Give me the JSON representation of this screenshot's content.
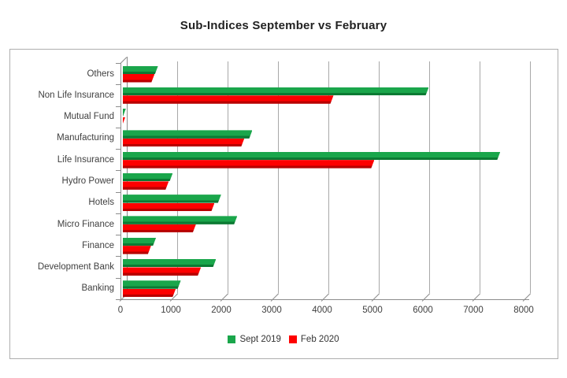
{
  "title": "Sub-Indices September vs February",
  "chart_data": {
    "type": "bar",
    "orientation": "horizontal",
    "style": "3d",
    "title": "Sub-Indices September vs February",
    "categories": [
      "Others",
      "Non Life Insurance",
      "Mutual Fund",
      "Manufacturing",
      "Life Insurance",
      "Hydro Power",
      "Hotels",
      "Micro Finance",
      "Finance",
      "Development Bank",
      "Banking"
    ],
    "series": [
      {
        "name": "Sept 2019",
        "color": "#1aa64b",
        "edge_color": "#0c7a33",
        "values": [
          700,
          6070,
          60,
          2570,
          7490,
          990,
          1950,
          2270,
          660,
          1850,
          1150
        ]
      },
      {
        "name": "Feb 2020",
        "color": "#fe0000",
        "edge_color": "#b80000",
        "values": [
          630,
          4180,
          50,
          2410,
          4990,
          910,
          1820,
          1450,
          560,
          1550,
          1050
        ]
      }
    ],
    "xlim": [
      0,
      8000
    ],
    "xticks": [
      0,
      1000,
      2000,
      3000,
      4000,
      5000,
      6000,
      7000,
      8000
    ],
    "grid": true,
    "gridline_color": "#a8a8a8",
    "axis_color": "#8c8c8c",
    "text_color": "#3f3f3f",
    "legend_position": "bottom"
  }
}
